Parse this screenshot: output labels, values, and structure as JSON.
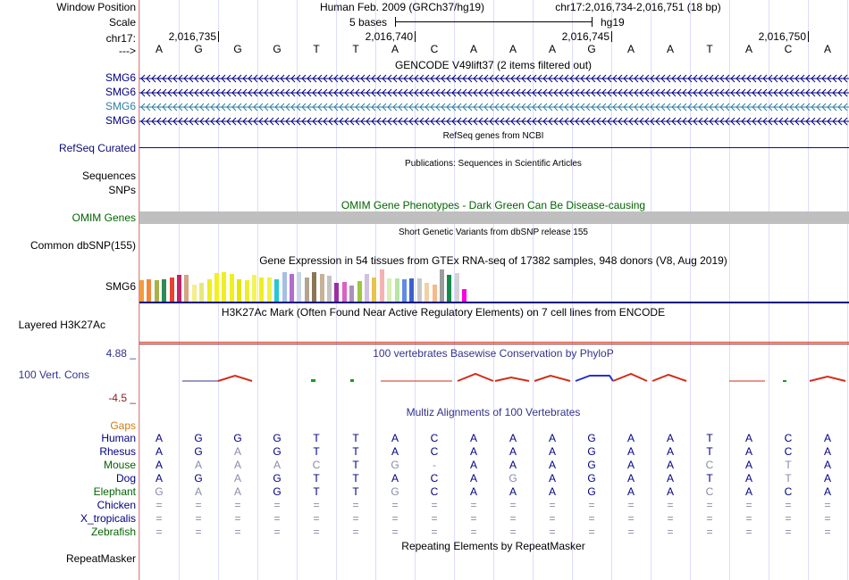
{
  "colors": {
    "gene_blue": "#000080",
    "gencode_cyan": "#2f7fa3",
    "refseq_label": "#0c0c78",
    "omim_green": "#006400",
    "omim_bar": "#bfbfbf",
    "phylop_blue": "#33338c",
    "phylop_red": "#8b1a1a",
    "gaps_orange": "#d17c0f",
    "h3k27ac_red": "#d22e1a",
    "divider": "#d98c8c",
    "grid": "#dcdcff"
  },
  "labels": {
    "window_position": "Window Position",
    "scale": "Scale",
    "chrom": "chr17:",
    "strand": "--->",
    "gene_tracks": [
      "SMG6",
      "SMG6",
      "SMG6",
      "SMG6"
    ],
    "refseq": "RefSeq Curated",
    "sequences": "Sequences",
    "snps": "SNPs",
    "omim": "OMIM Genes",
    "dbsnp": "Common dbSNP(155)",
    "gtex_gene": "SMG6",
    "h3k27ac": "Layered H3K27Ac",
    "phylop_max": "4.88 _",
    "phylop_name": "100 Vert. Cons",
    "phylop_min": "-4.5 _",
    "gaps": "Gaps",
    "species": [
      "Human",
      "Rhesus",
      "Mouse",
      "Dog",
      "Elephant",
      "Chicken",
      "X_tropicalis",
      "Zebrafish"
    ],
    "repeatmasker": "RepeatMasker"
  },
  "header": {
    "assembly": "Human Feb. 2009 (GRCh37/hg19)",
    "position": "chr17:2,016,734-2,016,751 (18 bp)",
    "scale_text": "5 bases",
    "scale_db": "hg19",
    "ticks": [
      "2,016,735",
      "2,016,740",
      "2,016,745",
      "2,016,750"
    ]
  },
  "sequence": [
    "A",
    "G",
    "G",
    "G",
    "T",
    "T",
    "A",
    "C",
    "A",
    "A",
    "A",
    "G",
    "A",
    "A",
    "T",
    "A",
    "C",
    "A"
  ],
  "track_titles": {
    "gencode": "GENCODE V49lift37 (2 items filtered out)",
    "refseq": "RefSeq genes from NCBI",
    "publications": "Publications: Sequences in Scientific Articles",
    "omim": "OMIM Gene Phenotypes - Dark Green Can Be Disease-causing",
    "dbsnp": "Short Genetic Variants from dbSNP release 155",
    "gtex": "Gene Expression in 54 tissues from GTEx RNA-seq of 17382 samples, 948 donors (V8, Aug 2019)",
    "h3k27ac": "H3K27Ac Mark (Often Found Near Active Regulatory Elements) on 7 cell lines from ENCODE",
    "phylop": "100 vertebrates Basewise Conservation by PhyloP",
    "multiz": "Multiz Alignments of 100 Vertebrates",
    "repeatmasker": "Repeating Elements by RepeatMasker"
  },
  "gtex_colors": [
    "#f59a3c",
    "#f2863a",
    "#a9b24a",
    "#2e8b57",
    "#e8422e",
    "#c0246b",
    "#d3a57e",
    "#f5ee8a",
    "#e9e77c",
    "#eeee22",
    "#f2f21c",
    "#eeee22",
    "#f0f01f",
    "#e5e500",
    "#eded30",
    "#f3f35a",
    "#eeee22",
    "#f1f14a",
    "#24c7d3",
    "#a7bfe3",
    "#b36bd0",
    "#c8d6e8",
    "#b4a392",
    "#8b7654",
    "#c6b298",
    "#c3c3c3",
    "#9a2ea6",
    "#db60c4",
    "#ad8fba",
    "#9cc740",
    "#d1c1df",
    "#e9c34a",
    "#f5b2b2",
    "#d7efb3",
    "#b5e6a5",
    "#5e8be8",
    "#3a61d1",
    "#c8c8c8",
    "#f1d0a6",
    "#f5b98a",
    "#9b9b9b",
    "#15894c",
    "#d3d3d3",
    "#ff00dd"
  ],
  "gtex_values": [
    0.62,
    0.66,
    0.62,
    0.66,
    0.72,
    0.8,
    0.78,
    0.5,
    0.56,
    0.66,
    0.85,
    0.86,
    0.82,
    0.66,
    0.62,
    0.78,
    0.7,
    0.7,
    0.66,
    0.88,
    0.82,
    0.88,
    0.7,
    0.86,
    0.82,
    0.76,
    0.56,
    0.58,
    0.48,
    0.6,
    0.82,
    0.7,
    0.94,
    0.68,
    0.68,
    0.66,
    0.68,
    0.68,
    0.56,
    0.5,
    0.94,
    0.8,
    0.84,
    0.36
  ],
  "alignment": [
    [
      "A",
      "G",
      "G",
      "G",
      "T",
      "T",
      "A",
      "C",
      "A",
      "A",
      "A",
      "G",
      "A",
      "A",
      "T",
      "A",
      "C",
      "A"
    ],
    [
      "A",
      "G",
      "A",
      "G",
      "T",
      "T",
      "A",
      "C",
      "A",
      "A",
      "A",
      "G",
      "A",
      "A",
      "T",
      "A",
      "C",
      "A"
    ],
    [
      "A",
      "A",
      "A",
      "A",
      "C",
      "T",
      "G",
      "-",
      "A",
      "A",
      "A",
      "G",
      "A",
      "A",
      "C",
      "A",
      "T",
      "A"
    ],
    [
      "A",
      "G",
      "A",
      "G",
      "T",
      "T",
      "A",
      "C",
      "A",
      "G",
      "A",
      "G",
      "A",
      "A",
      "T",
      "A",
      "T",
      "A"
    ],
    [
      "G",
      "A",
      "A",
      "G",
      "T",
      "T",
      "G",
      "C",
      "A",
      "A",
      "A",
      "G",
      "A",
      "A",
      "C",
      "A",
      "C",
      "A"
    ],
    [
      "=",
      "=",
      "=",
      "=",
      "=",
      "=",
      "=",
      "=",
      "=",
      "=",
      "=",
      "=",
      "=",
      "=",
      "=",
      "=",
      "=",
      "="
    ],
    [
      "=",
      "=",
      "=",
      "=",
      "=",
      "=",
      "=",
      "=",
      "=",
      "=",
      "=",
      "=",
      "=",
      "=",
      "=",
      "=",
      "=",
      "="
    ],
    [
      "=",
      "=",
      "=",
      "=",
      "=",
      "=",
      "=",
      "=",
      "=",
      "=",
      "=",
      "=",
      "=",
      "=",
      "=",
      "=",
      "=",
      "="
    ]
  ]
}
